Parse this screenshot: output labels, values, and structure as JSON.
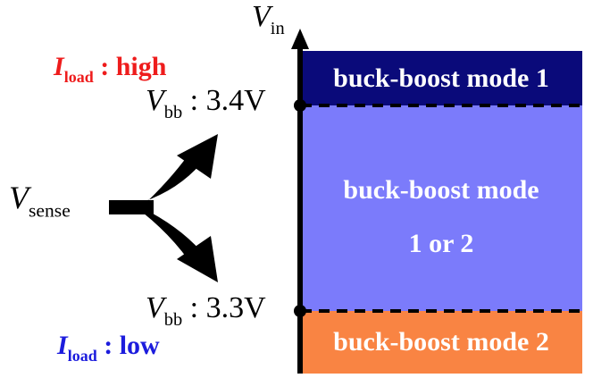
{
  "axis": {
    "v_symbol": "V",
    "v_subscript": "in"
  },
  "regions": [
    {
      "name": "mode1",
      "text": "buck-boost mode 1",
      "color": "#0a0a7a"
    },
    {
      "name": "mode12",
      "line1": "buck-boost mode",
      "line2": "1 or 2",
      "color": "#7b7bfb"
    },
    {
      "name": "mode2",
      "text": "buck-boost mode 2",
      "color": "#f98443"
    }
  ],
  "thresholds": {
    "high": {
      "v_symbol": "V",
      "v_subscript": "bb",
      "value": ": 3.4V"
    },
    "low": {
      "v_symbol": "V",
      "v_subscript": "bb",
      "value": ": 3.3V"
    }
  },
  "load": {
    "high": {
      "i_symbol": "I",
      "i_subscript": "load",
      "value": ": high",
      "color": "#ee1c1c"
    },
    "low": {
      "i_symbol": "I",
      "i_subscript": "load",
      "value": ": low",
      "color": "#1c1cdd"
    }
  },
  "sense": {
    "v_symbol": "V",
    "v_subscript": "sense"
  }
}
